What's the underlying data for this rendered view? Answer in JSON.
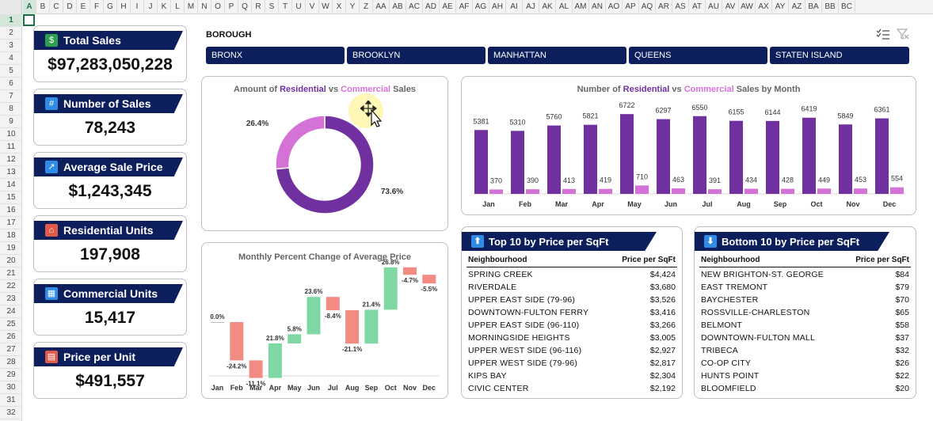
{
  "sheet": {
    "columns": [
      "A",
      "B",
      "C",
      "D",
      "E",
      "F",
      "G",
      "H",
      "I",
      "J",
      "K",
      "L",
      "M",
      "N",
      "O",
      "P",
      "Q",
      "R",
      "S",
      "T",
      "U",
      "V",
      "W",
      "X",
      "Y",
      "Z",
      "AA",
      "AB",
      "AC",
      "AD",
      "AE",
      "AF",
      "AG",
      "AH",
      "AI",
      "AJ",
      "AK",
      "AL",
      "AM",
      "AN",
      "AO",
      "AP",
      "AQ",
      "AR",
      "AS",
      "AT",
      "AU",
      "AV",
      "AW",
      "AX",
      "AY",
      "AZ",
      "BA",
      "BB",
      "BC"
    ],
    "rows": [
      "1",
      "2",
      "3",
      "4",
      "5",
      "6",
      "7",
      "8",
      "9",
      "10",
      "11",
      "12",
      "13",
      "14",
      "15",
      "16",
      "17",
      "18",
      "19",
      "20",
      "21",
      "22",
      "23",
      "24",
      "25",
      "26",
      "27",
      "28",
      "29",
      "30",
      "31",
      "32"
    ]
  },
  "kpis": [
    {
      "title": "Total Sales",
      "value": "$97,283,050,228",
      "icon": "money-icon",
      "color": "#2e9e4f"
    },
    {
      "title": "Number of Sales",
      "value": "78,243",
      "icon": "hashtag-icon",
      "color": "#2e8be6"
    },
    {
      "title": "Average Sale Price",
      "value": "$1,243,345",
      "icon": "chart-up-icon",
      "color": "#2e8be6"
    },
    {
      "title": "Residential Units",
      "value": "197,908",
      "icon": "house-icon",
      "color": "#e05a4a"
    },
    {
      "title": "Commercial Units",
      "value": "15,417",
      "icon": "building-icon",
      "color": "#2e8be6"
    },
    {
      "title": "Price per Unit",
      "value": "$491,557",
      "icon": "cash-register-icon",
      "color": "#e05a4a"
    }
  ],
  "slicer": {
    "title": "BOROUGH",
    "items": [
      "BRONX",
      "BROOKLYN",
      "MANHATTAN",
      "QUEENS",
      "STATEN ISLAND"
    ]
  },
  "donut": {
    "title_parts": [
      "Amount of ",
      "Residential",
      " vs ",
      "Commercial",
      " Sales"
    ]
  },
  "monthly": {
    "title_parts": [
      "Number of ",
      "Residential",
      " vs ",
      "Commercial",
      " Sales by Month"
    ]
  },
  "waterfall": {
    "title": "Monthly Percent Change of Average Price"
  },
  "top10": {
    "title": "Top 10 by Price per SqFt",
    "col1": "Neighbourhood",
    "col2": "Price per SqFt",
    "rows": [
      {
        "name": "SPRING CREEK",
        "value": "$4,424"
      },
      {
        "name": "RIVERDALE",
        "value": "$3,680"
      },
      {
        "name": "UPPER EAST SIDE (79-96)",
        "value": "$3,526"
      },
      {
        "name": "DOWNTOWN-FULTON FERRY",
        "value": "$3,416"
      },
      {
        "name": "UPPER EAST SIDE (96-110)",
        "value": "$3,266"
      },
      {
        "name": "MORNINGSIDE HEIGHTS",
        "value": "$3,005"
      },
      {
        "name": "UPPER WEST SIDE (96-116)",
        "value": "$2,927"
      },
      {
        "name": "UPPER WEST SIDE (79-96)",
        "value": "$2,817"
      },
      {
        "name": "KIPS BAY",
        "value": "$2,304"
      },
      {
        "name": "CIVIC CENTER",
        "value": "$2,192"
      }
    ]
  },
  "bottom10": {
    "title": "Bottom 10 by Price per SqFt",
    "col1": "Neighbourhood",
    "col2": "Price per SqFt",
    "rows": [
      {
        "name": "NEW BRIGHTON-ST. GEORGE",
        "value": "$84"
      },
      {
        "name": "EAST TREMONT",
        "value": "$79"
      },
      {
        "name": "BAYCHESTER",
        "value": "$70"
      },
      {
        "name": "ROSSVILLE-CHARLESTON",
        "value": "$65"
      },
      {
        "name": "BELMONT",
        "value": "$58"
      },
      {
        "name": "DOWNTOWN-FULTON MALL",
        "value": "$37"
      },
      {
        "name": "TRIBECA",
        "value": "$32"
      },
      {
        "name": "CO-OP CITY",
        "value": "$26"
      },
      {
        "name": "HUNTS POINT",
        "value": "$22"
      },
      {
        "name": "BLOOMFIELD",
        "value": "$20"
      }
    ]
  },
  "colors": {
    "navy": "#0c1f5c",
    "residential": "#7030a0",
    "commercial": "#d572d8",
    "increase": "#7fd8a4",
    "decrease": "#f28b82"
  },
  "chart_data": [
    {
      "type": "pie",
      "categories": [
        "Residential",
        "Commercial"
      ],
      "values": [
        73.6,
        26.4
      ],
      "labels": [
        "73.6%",
        "26.4%"
      ],
      "colors": [
        "#7030a0",
        "#d572d8"
      ]
    },
    {
      "type": "bar",
      "categories": [
        "Jan",
        "Feb",
        "Mar",
        "Apr",
        "May",
        "Jun",
        "Jul",
        "Aug",
        "Sep",
        "Oct",
        "Nov",
        "Dec"
      ],
      "series": [
        {
          "name": "Residential",
          "values": [
            5381,
            5310,
            5760,
            5821,
            6722,
            6297,
            6550,
            6155,
            6144,
            6419,
            5849,
            6361
          ]
        },
        {
          "name": "Commercial",
          "values": [
            370,
            390,
            413,
            419,
            710,
            463,
            391,
            434,
            428,
            449,
            453,
            554
          ]
        }
      ],
      "ylim": [
        0,
        7200
      ]
    },
    {
      "type": "bar",
      "subtype": "waterfall",
      "categories": [
        "Jan",
        "Feb",
        "Mar",
        "Apr",
        "May",
        "Jun",
        "Jul",
        "Aug",
        "Sep",
        "Oct",
        "Nov",
        "Dec"
      ],
      "values": [
        0.0,
        -24.2,
        -11.1,
        21.8,
        5.8,
        23.6,
        -8.4,
        -21.1,
        21.4,
        26.8,
        -4.7,
        -5.5
      ],
      "labels": [
        "0.0%",
        "-24.2%",
        "-11.1%",
        "21.8%",
        "5.8%",
        "23.6%",
        "-8.4%",
        "-21.1%",
        "21.4%",
        "26.8%",
        "-4.7%",
        "-5.5%"
      ]
    }
  ]
}
